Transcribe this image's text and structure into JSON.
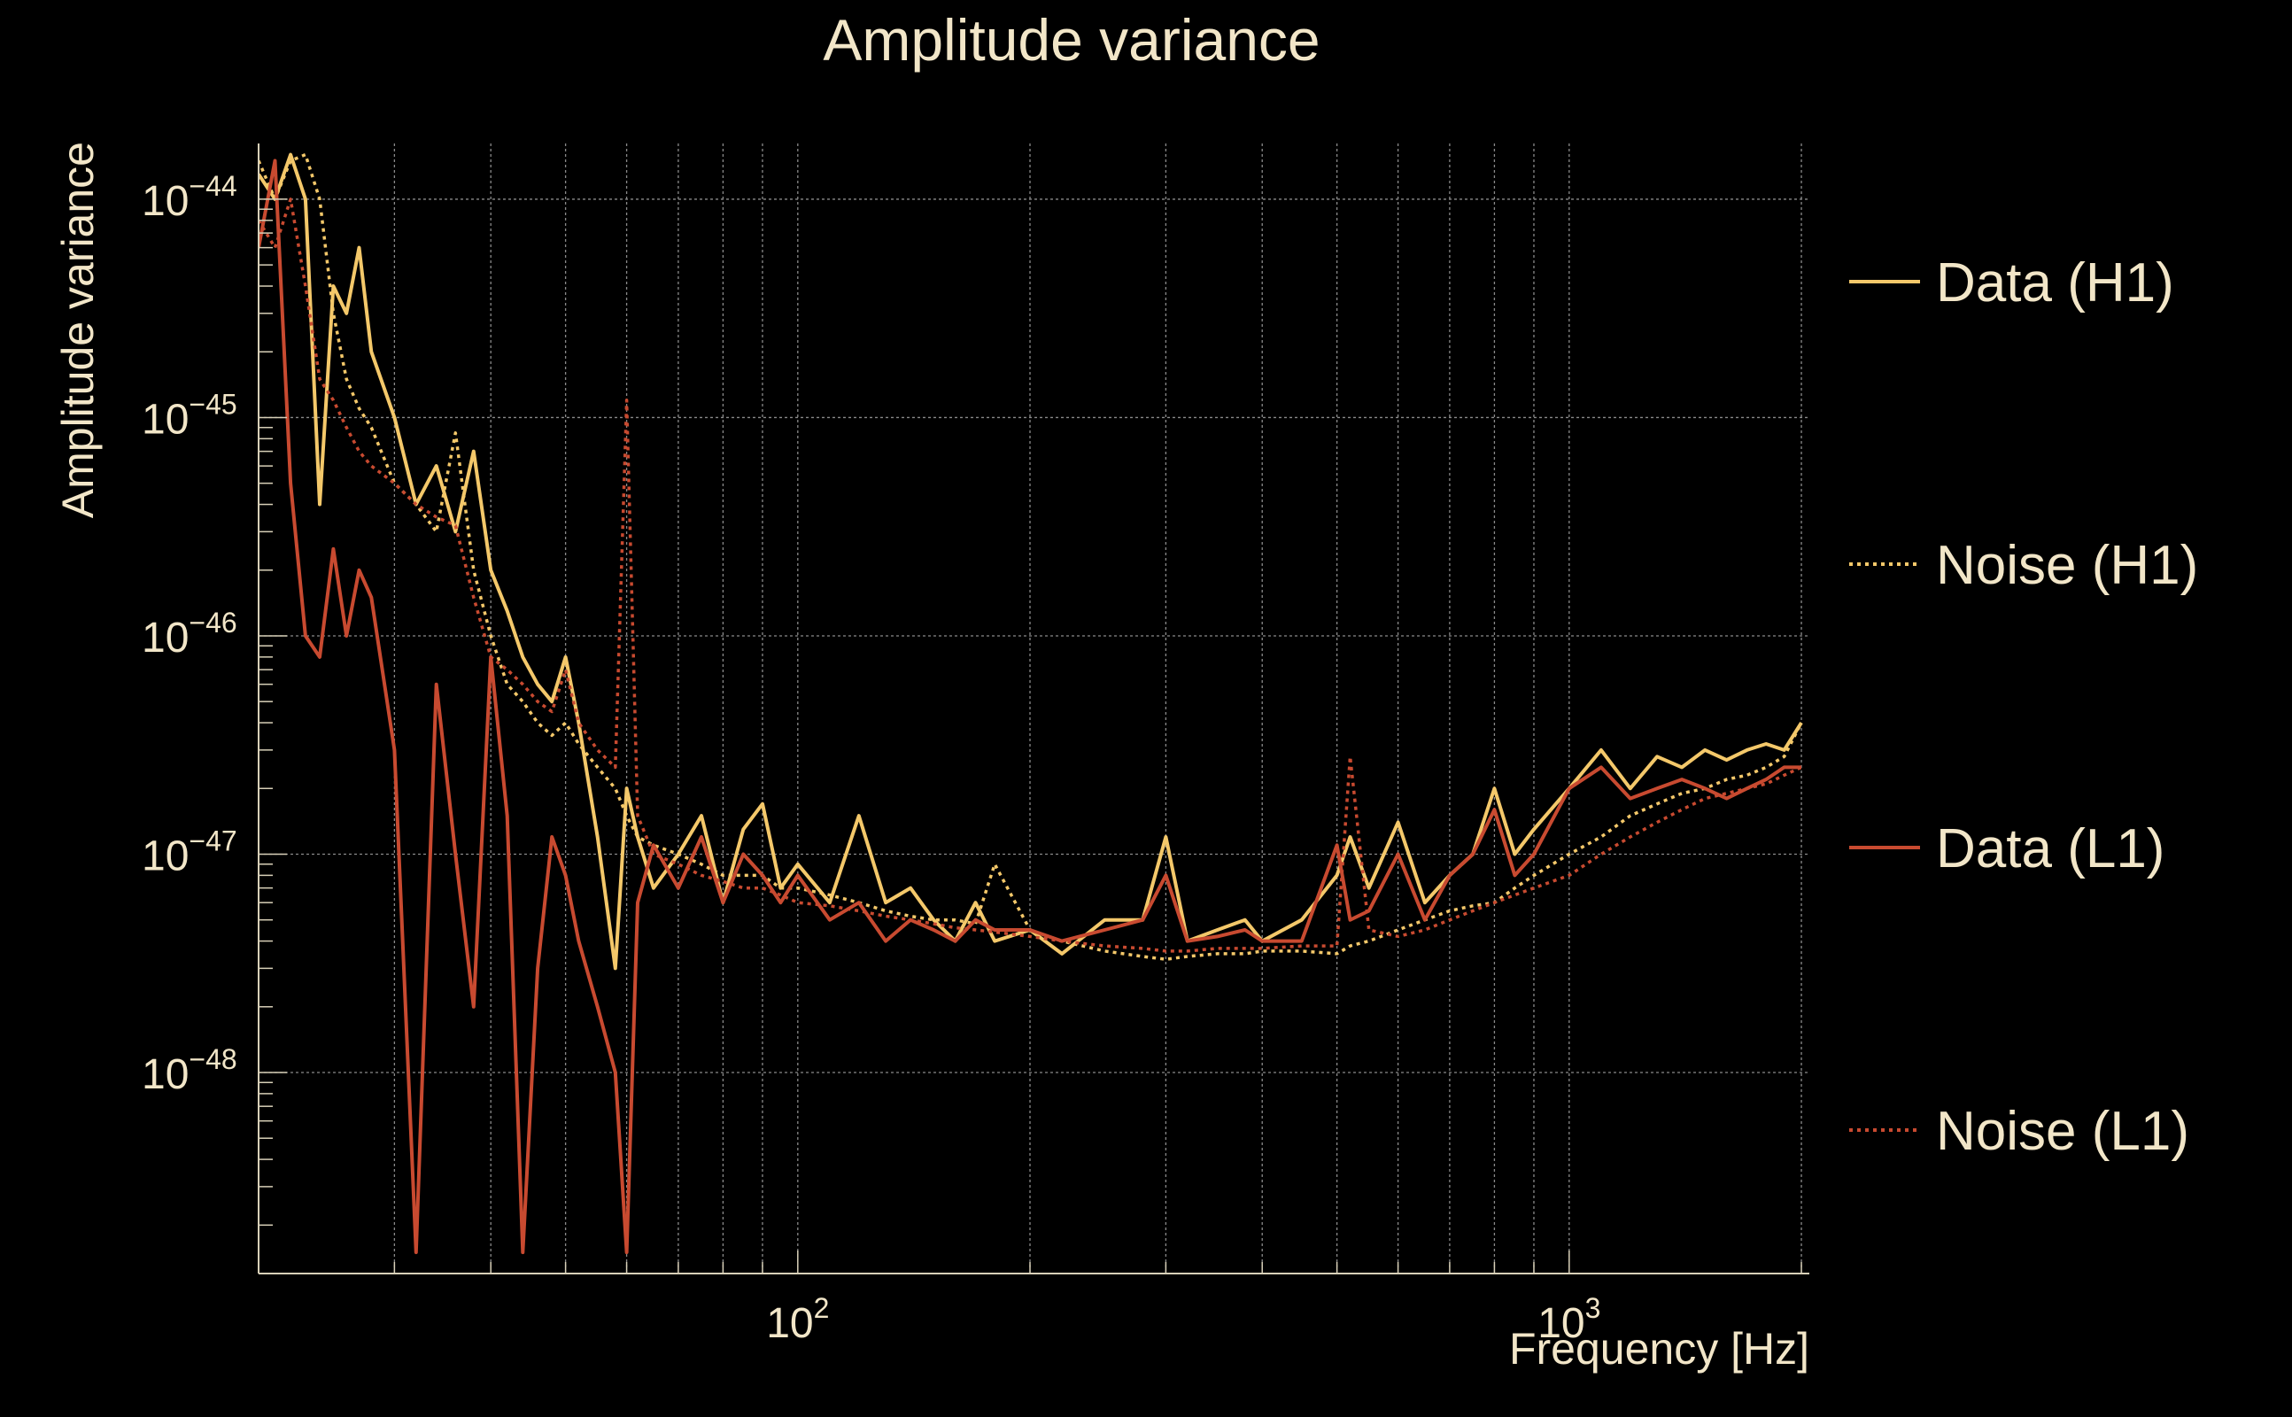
{
  "chart_data": {
    "type": "line",
    "title": "Amplitude variance",
    "xlabel": "Frequency [Hz]",
    "ylabel": "Amplitude variance",
    "x_scale": "log",
    "y_scale": "log",
    "xlim": [
      20,
      2048
    ],
    "ylim": [
      1.2e-49,
      1.8e-44
    ],
    "grid": true,
    "legend_position": "right",
    "x_ticks": [
      {
        "value": 100,
        "base": "10",
        "exp": "2"
      },
      {
        "value": 1000,
        "base": "10",
        "exp": "3"
      }
    ],
    "y_ticks": [
      {
        "value": 1e-44,
        "base": "10",
        "exp": "−44"
      },
      {
        "value": 1e-45,
        "base": "10",
        "exp": "−45"
      },
      {
        "value": 1e-46,
        "base": "10",
        "exp": "−46"
      },
      {
        "value": 1e-47,
        "base": "10",
        "exp": "−47"
      },
      {
        "value": 1e-48,
        "base": "10",
        "exp": "−48"
      }
    ],
    "series": [
      {
        "name": "Data (H1)",
        "color": "#f4c86a",
        "dash": "solid",
        "x": [
          20,
          21,
          22,
          23,
          24,
          25,
          26,
          27,
          28,
          30,
          32,
          34,
          36,
          38,
          40,
          42,
          44,
          46,
          48,
          50,
          52,
          55,
          58,
          60,
          62,
          65,
          70,
          75,
          80,
          85,
          90,
          95,
          100,
          110,
          120,
          130,
          140,
          150,
          160,
          170,
          180,
          200,
          220,
          250,
          280,
          300,
          320,
          350,
          380,
          400,
          450,
          500,
          520,
          550,
          600,
          650,
          700,
          750,
          800,
          850,
          900,
          1000,
          1100,
          1200,
          1300,
          1400,
          1500,
          1600,
          1700,
          1800,
          1900,
          2000
        ],
        "y": [
          1.3e-44,
          1e-44,
          1.6e-44,
          1e-44,
          4e-46,
          4e-45,
          3e-45,
          6e-45,
          2e-45,
          1e-45,
          4e-46,
          6e-46,
          3e-46,
          7e-46,
          2e-46,
          1.3e-46,
          8e-47,
          6e-47,
          5e-47,
          8e-47,
          4e-47,
          1.2e-47,
          3e-48,
          2e-47,
          1.2e-47,
          7e-48,
          1e-47,
          1.5e-47,
          6e-48,
          1.3e-47,
          1.7e-47,
          7e-48,
          9e-48,
          6e-48,
          1.5e-47,
          6e-48,
          7e-48,
          5e-48,
          4e-48,
          6e-48,
          4e-48,
          4.5e-48,
          3.5e-48,
          5e-48,
          5e-48,
          1.2e-47,
          4e-48,
          4.5e-48,
          5e-48,
          4e-48,
          5e-48,
          8e-48,
          1.2e-47,
          7e-48,
          1.4e-47,
          6e-48,
          8e-48,
          1e-47,
          2e-47,
          1e-47,
          1.3e-47,
          2e-47,
          3e-47,
          2e-47,
          2.8e-47,
          2.5e-47,
          3e-47,
          2.7e-47,
          3e-47,
          3.2e-47,
          3e-47,
          4e-47
        ]
      },
      {
        "name": "Noise (H1)",
        "color": "#f4c86a",
        "dash": "dotted",
        "x": [
          20,
          21,
          22,
          23,
          24,
          25,
          26,
          27,
          28,
          30,
          32,
          34,
          36,
          38,
          40,
          42,
          44,
          46,
          48,
          50,
          52,
          55,
          58,
          60,
          62,
          65,
          70,
          75,
          80,
          85,
          90,
          95,
          100,
          110,
          120,
          130,
          140,
          150,
          160,
          170,
          180,
          200,
          220,
          250,
          280,
          300,
          320,
          350,
          380,
          400,
          450,
          500,
          520,
          550,
          600,
          650,
          700,
          750,
          800,
          850,
          900,
          1000,
          1100,
          1200,
          1300,
          1400,
          1500,
          1600,
          1700,
          1800,
          1900,
          2000
        ],
        "y": [
          1.5e-44,
          1e-44,
          1.5e-44,
          1.6e-44,
          1e-44,
          3e-45,
          1.5e-45,
          1.1e-45,
          9e-46,
          5e-46,
          4e-46,
          3e-46,
          8.5e-46,
          2e-46,
          1e-46,
          6e-47,
          5e-47,
          4e-47,
          3.5e-47,
          4e-47,
          3.2e-47,
          2.5e-47,
          2e-47,
          1.5e-47,
          1.2e-47,
          1.1e-47,
          1e-47,
          9e-48,
          8e-48,
          8e-48,
          8e-48,
          7e-48,
          7e-48,
          6.5e-48,
          6e-48,
          5.5e-48,
          5.2e-48,
          5e-48,
          5e-48,
          4.8e-48,
          9e-48,
          4.5e-48,
          4e-48,
          3.6e-48,
          3.4e-48,
          3.3e-48,
          3.4e-48,
          3.5e-48,
          3.5e-48,
          3.6e-48,
          3.6e-48,
          3.5e-48,
          3.8e-48,
          4e-48,
          4.5e-48,
          5e-48,
          5.5e-48,
          5.8e-48,
          6e-48,
          7e-48,
          8e-48,
          1e-47,
          1.2e-47,
          1.5e-47,
          1.7e-47,
          1.9e-47,
          2e-47,
          2.2e-47,
          2.3e-47,
          2.5e-47,
          2.8e-47,
          4e-47
        ]
      },
      {
        "name": "Data (L1)",
        "color": "#c84a30",
        "dash": "solid",
        "x": [
          20,
          21,
          22,
          23,
          24,
          25,
          26,
          27,
          28,
          30,
          32,
          34,
          36,
          38,
          40,
          42,
          44,
          46,
          48,
          50,
          52,
          55,
          58,
          60,
          62,
          65,
          70,
          75,
          80,
          85,
          90,
          95,
          100,
          110,
          120,
          130,
          140,
          150,
          160,
          170,
          180,
          200,
          220,
          250,
          280,
          300,
          320,
          350,
          380,
          400,
          450,
          500,
          520,
          550,
          600,
          650,
          700,
          750,
          800,
          850,
          900,
          1000,
          1100,
          1200,
          1300,
          1400,
          1500,
          1600,
          1700,
          1800,
          1900,
          2000
        ],
        "y": [
          6e-45,
          1.5e-44,
          5e-46,
          1e-46,
          8e-47,
          2.5e-46,
          1e-46,
          2e-46,
          1.5e-46,
          3e-47,
          1.5e-49,
          6e-47,
          1e-47,
          2e-48,
          8e-47,
          1.5e-47,
          1.5e-49,
          3e-48,
          1.2e-47,
          8e-48,
          4e-48,
          2e-48,
          1e-48,
          1.5e-49,
          6e-48,
          1.1e-47,
          7e-48,
          1.2e-47,
          6e-48,
          1e-47,
          8e-48,
          6e-48,
          8e-48,
          5e-48,
          6e-48,
          4e-48,
          5e-48,
          4.5e-48,
          4e-48,
          5e-48,
          4.5e-48,
          4.5e-48,
          4e-48,
          4.5e-48,
          5e-48,
          8e-48,
          4e-48,
          4.2e-48,
          4.5e-48,
          4e-48,
          4e-48,
          1.1e-47,
          5e-48,
          5.5e-48,
          1e-47,
          5e-48,
          8e-48,
          1e-47,
          1.6e-47,
          8e-48,
          1e-47,
          2e-47,
          2.5e-47,
          1.8e-47,
          2e-47,
          2.2e-47,
          2e-47,
          1.8e-47,
          2e-47,
          2.2e-47,
          2.5e-47,
          2.5e-47
        ]
      },
      {
        "name": "Noise (L1)",
        "color": "#c84a30",
        "dash": "dotted",
        "x": [
          20,
          21,
          22,
          23,
          24,
          25,
          26,
          27,
          28,
          30,
          32,
          34,
          36,
          38,
          40,
          42,
          44,
          46,
          48,
          50,
          52,
          55,
          58,
          60,
          62,
          65,
          70,
          75,
          80,
          85,
          90,
          95,
          100,
          110,
          120,
          130,
          140,
          150,
          160,
          170,
          180,
          200,
          220,
          250,
          280,
          300,
          320,
          350,
          380,
          400,
          450,
          500,
          520,
          550,
          600,
          650,
          700,
          750,
          800,
          850,
          900,
          1000,
          1100,
          1200,
          1300,
          1400,
          1500,
          1600,
          1700,
          1800,
          1900,
          2000
        ],
        "y": [
          8e-45,
          6e-45,
          1e-44,
          4e-45,
          1.5e-45,
          1.2e-45,
          9e-46,
          7e-46,
          6e-46,
          5e-46,
          4e-46,
          3.5e-46,
          3.2e-46,
          1.5e-46,
          8e-47,
          7e-47,
          6e-47,
          5e-47,
          4.5e-47,
          7e-47,
          4e-47,
          3e-47,
          2.5e-47,
          1.2e-45,
          1.5e-47,
          1e-47,
          9e-48,
          8e-48,
          7.5e-48,
          7e-48,
          7e-48,
          6.5e-48,
          6e-48,
          5.8e-48,
          5.5e-48,
          5.2e-48,
          5e-48,
          4.8e-48,
          4.6e-48,
          4.5e-48,
          4.4e-48,
          4.2e-48,
          4e-48,
          3.8e-48,
          3.7e-48,
          3.6e-48,
          3.6e-48,
          3.7e-48,
          3.7e-48,
          3.7e-48,
          3.8e-48,
          3.8e-48,
          2.8e-47,
          4.5e-48,
          4.2e-48,
          4.5e-48,
          5e-48,
          5.5e-48,
          6e-48,
          6.5e-48,
          7e-48,
          8e-48,
          1e-47,
          1.2e-47,
          1.4e-47,
          1.6e-47,
          1.8e-47,
          1.9e-47,
          2e-47,
          2.1e-47,
          2.3e-47,
          2.5e-47
        ]
      }
    ]
  }
}
